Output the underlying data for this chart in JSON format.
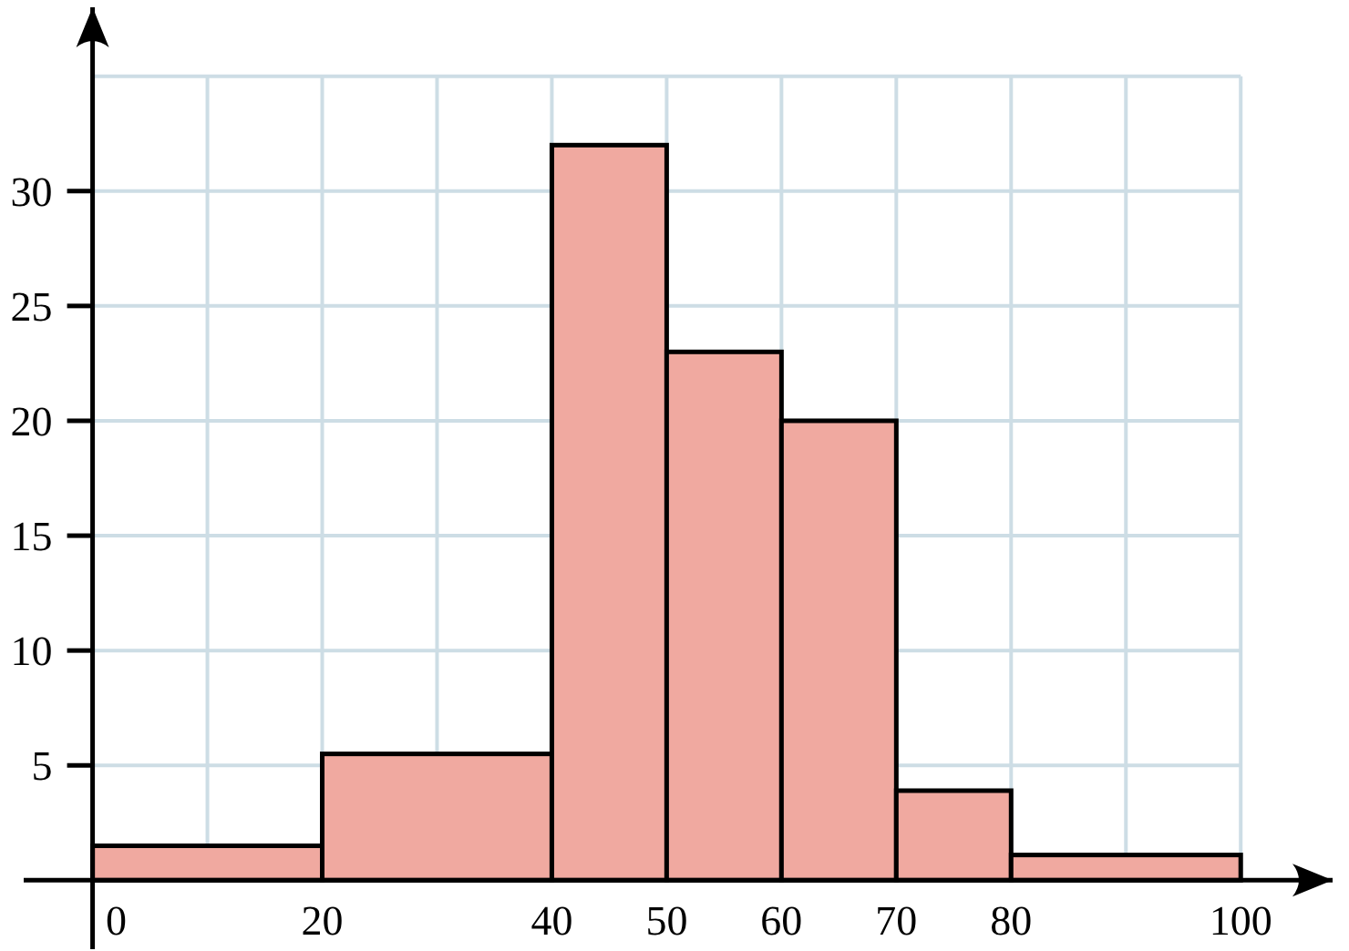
{
  "chart_data": {
    "type": "histogram",
    "bins": [
      0,
      20,
      40,
      50,
      60,
      70,
      80,
      100
    ],
    "values": [
      1.5,
      5.5,
      32,
      23,
      20,
      3.9,
      1.1
    ],
    "color": "#f0a9a0",
    "xlim": [
      -6,
      108
    ],
    "ylim": [
      -3,
      38
    ],
    "xticks": [
      0,
      {
        "value": 10,
        "label": null
      },
      20,
      {
        "value": 30,
        "label": null
      },
      40,
      50,
      60,
      70,
      80,
      {
        "value": 90,
        "label": null
      },
      100
    ],
    "yticks": [
      5,
      10,
      15,
      20,
      25,
      30,
      {
        "value": 35,
        "label": null
      }
    ],
    "grid": true
  }
}
